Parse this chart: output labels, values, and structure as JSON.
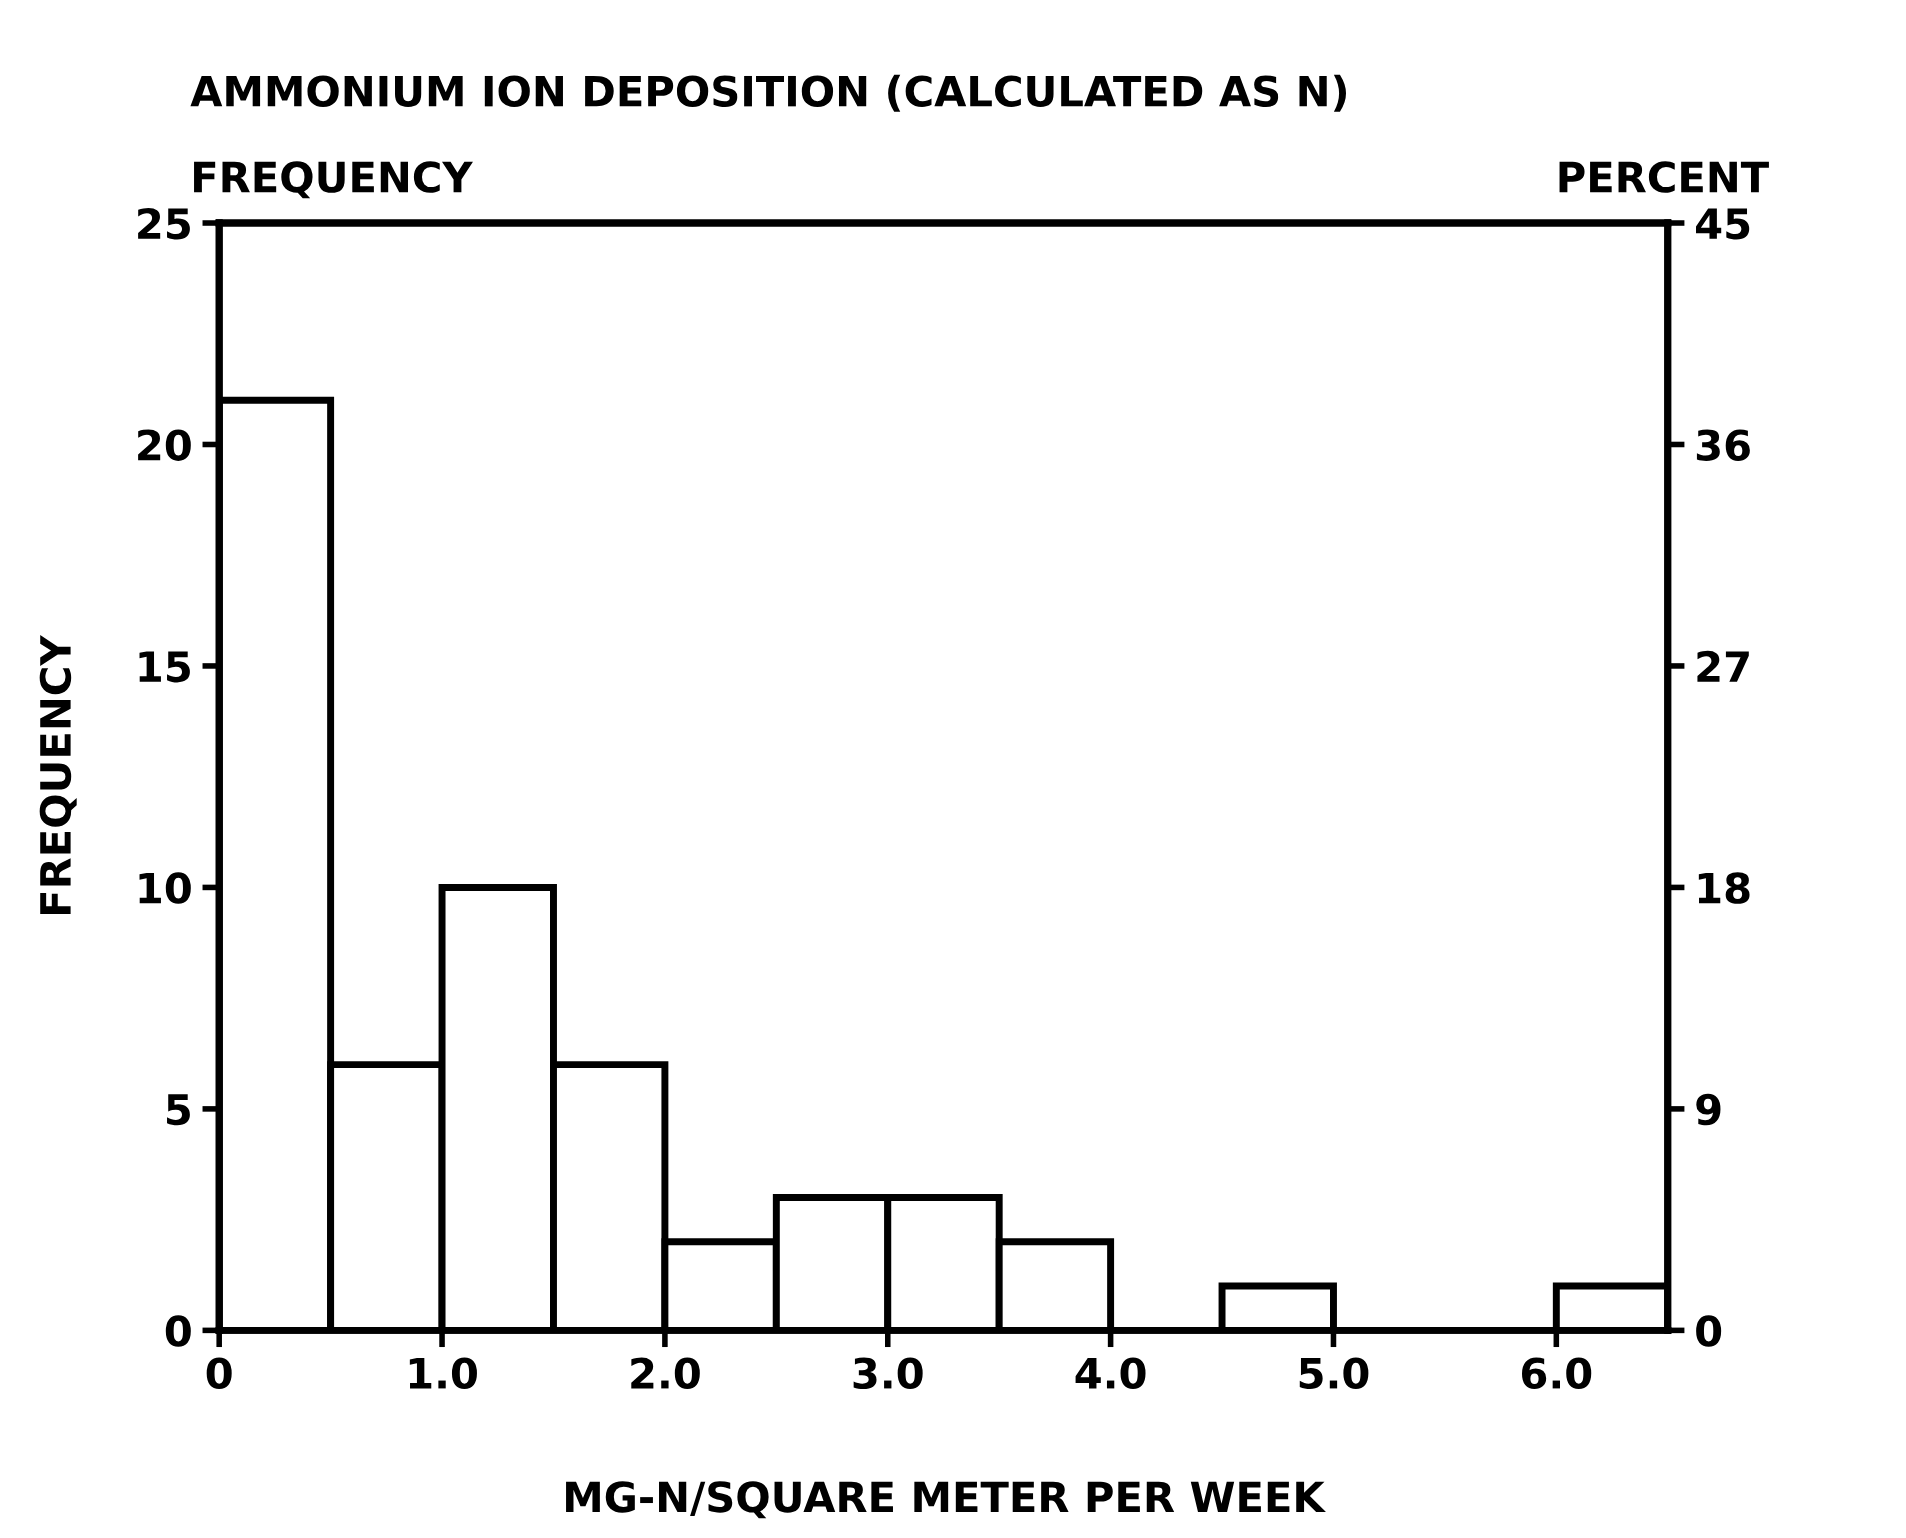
{
  "chart_data": {
    "type": "histogram",
    "title": "AMMONIUM ION DEPOSITION (CALCULATED AS N)",
    "xlabel": "MG-N/SQUARE METER PER WEEK",
    "ylabel": "FREQUENCY",
    "y2label": "PERCENT",
    "annotations": [
      "FREQUENCY"
    ],
    "bins": [
      0,
      0.5,
      1.0,
      1.5,
      2.0,
      2.5,
      3.0,
      3.5,
      4.0,
      4.5,
      5.0,
      5.5,
      6.0,
      6.5
    ],
    "values": [
      21,
      6,
      10,
      6,
      2,
      3,
      3,
      2,
      0,
      1,
      0,
      0,
      1
    ],
    "color": "#ffffff",
    "xlim": [
      0,
      6.5
    ],
    "xticks": [
      0,
      {
        "value": 1,
        "label": "1.0"
      },
      {
        "value": 2,
        "label": "2.0"
      },
      {
        "value": 3,
        "label": "3.0"
      },
      {
        "value": 4,
        "label": "4.0"
      },
      {
        "value": 5,
        "label": "5.0"
      },
      {
        "value": 6,
        "label": "6.0"
      }
    ],
    "ylim": [
      0,
      25
    ],
    "yticks": [
      0,
      5,
      10,
      15,
      20,
      25
    ],
    "y2lim": [
      0,
      45
    ],
    "y2ticks": [
      0,
      9,
      18,
      27,
      36,
      45
    ],
    "grid": false
  }
}
